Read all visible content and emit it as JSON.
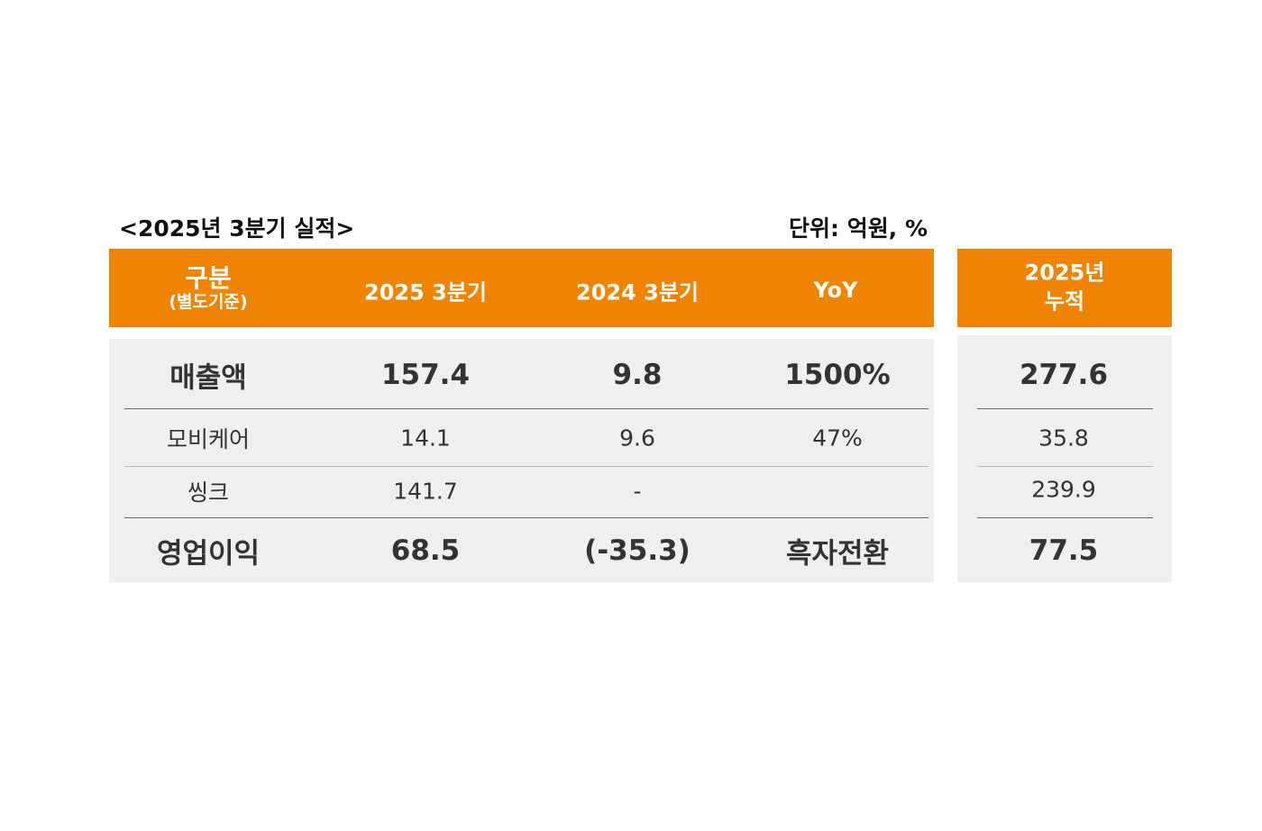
{
  "title": "<2025년 3분기 실적>",
  "unit": "단위: 억원, %",
  "colors": {
    "header": "#F08300",
    "body": "#EFEFEF"
  },
  "main_table": {
    "headers": [
      {
        "label": "구분",
        "sub": "(별도기준)"
      },
      {
        "label": "2025 3분기"
      },
      {
        "label": "2024 3분기"
      },
      {
        "label": "YoY"
      }
    ],
    "rows": [
      {
        "name": "매출액",
        "q3_2025": "157.4",
        "q3_2024": "9.8",
        "yoy": "1500%"
      },
      {
        "name": "모비케어",
        "q3_2025": "14.1",
        "q3_2024": "9.6",
        "yoy": "47%"
      },
      {
        "name": "씽크",
        "q3_2025": "141.7",
        "q3_2024": "-",
        "yoy": ""
      },
      {
        "name": "영업이익",
        "q3_2025": "68.5",
        "q3_2024": "(-35.3)",
        "yoy": "흑자전환"
      }
    ]
  },
  "cumulative_table": {
    "header_line1": "2025년",
    "header_line2": "누적",
    "values": [
      "277.6",
      "35.8",
      "239.9",
      "77.5"
    ]
  }
}
